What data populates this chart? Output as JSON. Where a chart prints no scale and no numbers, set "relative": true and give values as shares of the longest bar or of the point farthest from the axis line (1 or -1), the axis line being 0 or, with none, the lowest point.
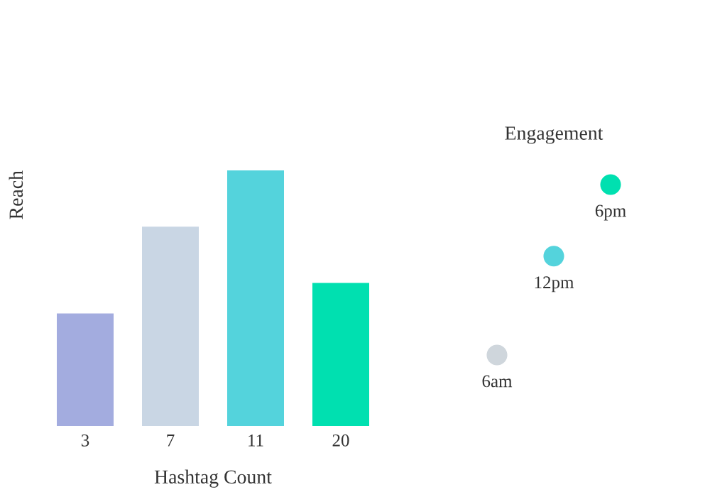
{
  "chart_data": [
    {
      "type": "bar",
      "xlabel": "Hashtag Count",
      "ylabel": "Reach",
      "relative": true,
      "categories": [
        "3",
        "7",
        "11",
        "20"
      ],
      "values": [
        0.44,
        0.78,
        1,
        0.56
      ],
      "colors": [
        "#a3acdf",
        "#c9d6e4",
        "#54d3dc",
        "#00e0b0"
      ],
      "grid": false,
      "legend": false
    },
    {
      "type": "other",
      "title": "Engagement",
      "annotations": [
        "6am",
        "12pm",
        "6pm"
      ],
      "colors": [
        "#cfd6dc",
        "#54d3dc",
        "#00e0b0"
      ]
    }
  ]
}
